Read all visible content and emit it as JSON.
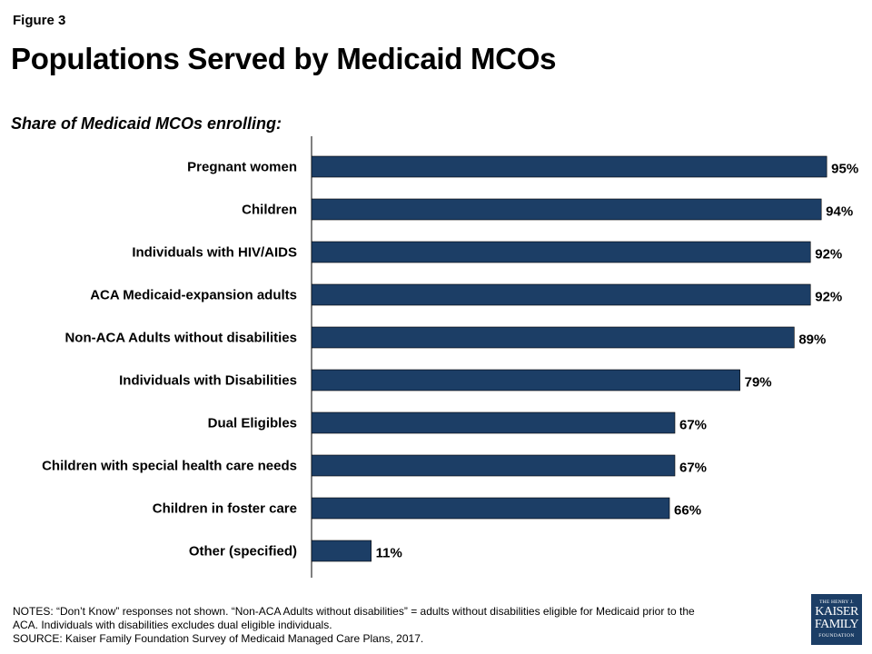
{
  "figure_label": "Figure 3",
  "chart_data": {
    "type": "bar",
    "orientation": "horizontal",
    "title": "Populations Served by Medicaid MCOs",
    "subtitle": "Share of Medicaid MCOs enrolling:",
    "categories": [
      "Pregnant women",
      "Children",
      "Individuals with HIV/AIDS",
      "ACA Medicaid-expansion adults",
      "Non-ACA Adults without disabilities",
      "Individuals with Disabilities",
      "Dual Eligibles",
      "Children with special health care needs",
      "Children in foster care",
      "Other (specified)"
    ],
    "values": [
      95,
      94,
      92,
      92,
      89,
      79,
      67,
      67,
      66,
      11
    ],
    "data_labels": [
      "95%",
      "94%",
      "92%",
      "92%",
      "89%",
      "79%",
      "67%",
      "67%",
      "66%",
      "11%"
    ],
    "value_unit": "%",
    "xlim": [
      0,
      100
    ],
    "bar_color": "#1c3e66",
    "grid": false,
    "legend": "none"
  },
  "notes": {
    "line1": "NOTES: “Don’t Know” responses not shown. “Non-ACA Adults without disabilities” = adults without disabilities eligible for Medicaid prior to the",
    "line2": "ACA. Individuals with disabilities excludes dual eligible individuals.",
    "source": "SOURCE: Kaiser Family Foundation Survey of Medicaid Managed Care Plans, 2017."
  },
  "logo": {
    "line1": "THE HENRY J.",
    "line2": "KAISER",
    "line3": "FAMILY",
    "line4": "FOUNDATION",
    "color": "#1c3e66"
  }
}
